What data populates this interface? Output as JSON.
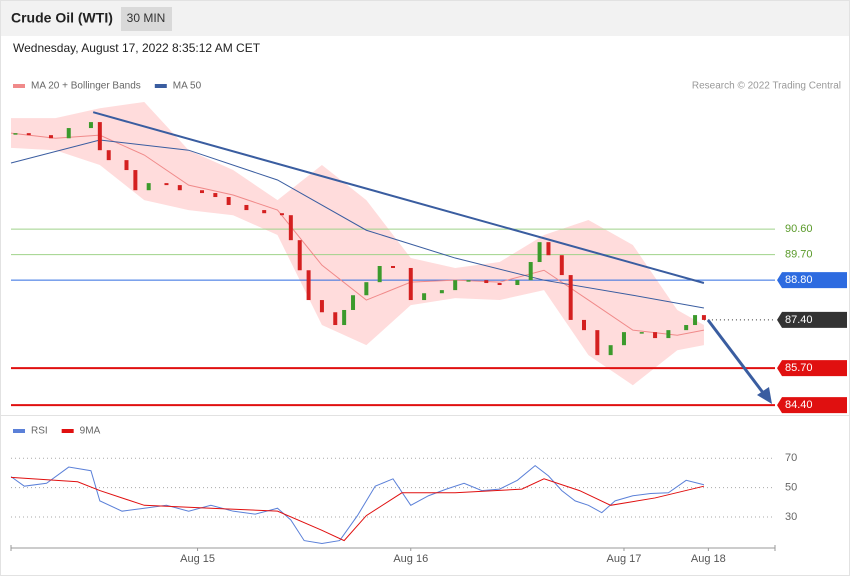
{
  "header": {
    "title": "Crude Oil (WTI)",
    "timeframe": "30 MIN",
    "timestamp": "Wednesday, August 17, 2022 8:35:12 AM CET",
    "source": "Research © 2022 Trading Central"
  },
  "chart_data": [
    {
      "type": "candlestick",
      "x": [
        1,
        4,
        9,
        13,
        18,
        20,
        22,
        26,
        28,
        31,
        35,
        38,
        43,
        46,
        49,
        53,
        57,
        61,
        63,
        65,
        67,
        70,
        73,
        75,
        77,
        80,
        83,
        86,
        90,
        93,
        97,
        100,
        103,
        107,
        110,
        114,
        117,
        119,
        121,
        124,
        126,
        129,
        132,
        135,
        138,
        142,
        145,
        148,
        152,
        154,
        156
      ],
      "close": [
        93.98,
        93.91,
        93.8,
        94.16,
        94.37,
        93.38,
        93.03,
        92.68,
        91.97,
        92.22,
        92.15,
        91.97,
        91.87,
        91.73,
        91.45,
        91.27,
        91.16,
        91.09,
        90.21,
        89.15,
        88.1,
        87.67,
        87.22,
        87.75,
        88.27,
        88.73,
        89.3,
        89.23,
        88.1,
        88.34,
        88.45,
        88.8,
        88.8,
        88.7,
        88.63,
        88.8,
        89.44,
        90.14,
        89.68,
        88.98,
        87.4,
        87.04,
        86.16,
        86.51,
        86.97,
        86.97,
        86.76,
        87.04,
        87.22,
        87.57,
        87.4
      ],
      "color_up": "#3c9a2c",
      "color_down": "#d42020",
      "series": [
        {
          "name": "MA 20 + Bollinger Bands",
          "color": "#f08a8a",
          "band_color": "#ffdcdc",
          "x": [
            0,
            10,
            20,
            30,
            40,
            50,
            60,
            70,
            80,
            90,
            100,
            110,
            120,
            130,
            140,
            150,
            156
          ],
          "values": [
            93.98,
            93.8,
            93.91,
            93.21,
            92.15,
            91.8,
            91.27,
            89.33,
            88.1,
            88.73,
            88.8,
            88.73,
            89.15,
            88.1,
            87.04,
            86.86,
            87.04
          ],
          "upper": [
            94.51,
            94.51,
            94.86,
            95.08,
            93.38,
            92.68,
            91.62,
            92.86,
            91.62,
            89.58,
            89.23,
            89.44,
            90.39,
            90.92,
            90.04,
            87.75,
            87.22
          ],
          "lower": [
            93.46,
            93.38,
            92.86,
            91.62,
            91.27,
            91.09,
            90.39,
            87.22,
            86.51,
            87.92,
            88.17,
            88.1,
            88.45,
            86.16,
            85.1,
            86.33,
            86.51
          ]
        },
        {
          "name": "MA 50",
          "color": "#3a5da0",
          "x": [
            0,
            20,
            40,
            60,
            80,
            100,
            120,
            140,
            156
          ],
          "values": [
            92.93,
            93.74,
            93.38,
            92.33,
            90.56,
            89.58,
            88.8,
            88.27,
            87.82
          ]
        }
      ],
      "trendline": {
        "x": [
          18.5,
          156
        ],
        "y": [
          94.72,
          88.7
        ],
        "color": "#3a5da0"
      },
      "levels": [
        {
          "value": 90.6,
          "label": "90.60",
          "color": "#9fd28a",
          "text_color": "#5a9a2a",
          "tag": false,
          "width": 1,
          "dash": false
        },
        {
          "value": 89.7,
          "label": "89.70",
          "color": "#9fd28a",
          "text_color": "#5a9a2a",
          "tag": false,
          "width": 1,
          "dash": false
        },
        {
          "value": 88.8,
          "label": "88.80",
          "color": "#2d6be0",
          "text_color": "#ffffff",
          "tag": true,
          "width": 1,
          "dash": false
        },
        {
          "value": 87.4,
          "label": "87.40",
          "color": "#333333",
          "text_color": "#ffffff",
          "tag": true,
          "width": 1,
          "dash": true
        },
        {
          "value": 85.7,
          "label": "85.70",
          "color": "#e01010",
          "text_color": "#ffffff",
          "tag": true,
          "width": 2,
          "dash": false
        },
        {
          "value": 84.4,
          "label": "84.40",
          "color": "#e01010",
          "text_color": "#ffffff",
          "tag": true,
          "width": 2,
          "dash": false
        }
      ],
      "xlim": [
        0,
        172
      ],
      "ylim": [
        84.05,
        95.3
      ]
    },
    {
      "type": "line",
      "series": [
        {
          "name": "RSI",
          "color": "#5b80d8",
          "x": [
            0,
            3,
            8,
            13,
            18,
            20,
            25,
            30,
            35,
            40,
            45,
            50,
            55,
            60,
            63,
            66,
            70,
            74,
            78,
            82,
            86,
            90,
            94,
            98,
            102,
            106,
            110,
            114,
            118,
            121,
            124,
            127,
            130,
            133,
            136,
            140,
            144,
            148,
            152,
            156
          ],
          "values": [
            57.5,
            51,
            53,
            64,
            61.5,
            41,
            34,
            36,
            38,
            34,
            38,
            34,
            32,
            36,
            28,
            14,
            12,
            14,
            31,
            51,
            56,
            38,
            44.5,
            49,
            53,
            48,
            49,
            55,
            65,
            58,
            48,
            41,
            38,
            33,
            41,
            44.5,
            46,
            46.5,
            55,
            52
          ]
        },
        {
          "name": "9MA",
          "color": "#e01010",
          "x": [
            0,
            15,
            20,
            30,
            45,
            60,
            70,
            75,
            80,
            88,
            100,
            115,
            120,
            128,
            135,
            145,
            156
          ],
          "values": [
            57,
            54,
            48,
            38,
            36,
            34,
            21,
            14,
            31,
            46.5,
            46.5,
            49,
            56,
            48,
            38,
            43,
            51
          ]
        }
      ],
      "xlim": [
        0,
        172
      ],
      "ylim": [
        11,
        96
      ],
      "yticks": [
        70,
        50,
        30
      ],
      "xticks": [
        {
          "value": 42,
          "label": "Aug 15"
        },
        {
          "value": 90,
          "label": "Aug 16"
        },
        {
          "value": 138,
          "label": "Aug 17"
        },
        {
          "value": 157,
          "label": "Aug 18"
        }
      ]
    }
  ]
}
